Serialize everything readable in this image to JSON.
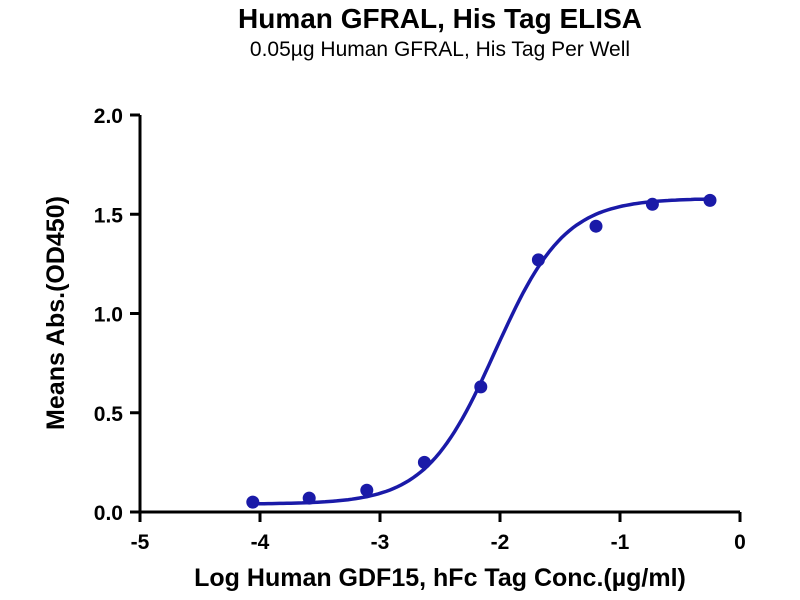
{
  "chart_data": {
    "type": "scatter",
    "title": "Human GFRAL, His Tag ELISA",
    "subtitle": "0.05µg Human GFRAL, His Tag Per Well",
    "xlabel": "Log Human GDF15, hFc Tag Conc.(µg/ml)",
    "ylabel": "Means Abs.(OD450)",
    "xlim": [
      -5,
      0
    ],
    "ylim": [
      0,
      2
    ],
    "grid": false,
    "legend": null,
    "x_ticks": [
      {
        "v": -5,
        "label": "-5"
      },
      {
        "v": -4,
        "label": "-4"
      },
      {
        "v": -3,
        "label": "-3"
      },
      {
        "v": -2,
        "label": "-2"
      },
      {
        "v": -1,
        "label": "-1"
      },
      {
        "v": 0,
        "label": "0"
      }
    ],
    "y_ticks": [
      {
        "v": 0,
        "label": "0.0"
      },
      {
        "v": 0.5,
        "label": "0.5"
      },
      {
        "v": 1,
        "label": "1.0"
      },
      {
        "v": 1.5,
        "label": "1.5"
      },
      {
        "v": 2,
        "label": "2.0"
      }
    ],
    "series": [
      {
        "name": "Human GDF15, hFc Tag",
        "points": [
          {
            "x": -4.06,
            "y": 0.05
          },
          {
            "x": -3.59,
            "y": 0.07
          },
          {
            "x": -3.11,
            "y": 0.11
          },
          {
            "x": -2.63,
            "y": 0.25
          },
          {
            "x": -2.16,
            "y": 0.63
          },
          {
            "x": -1.68,
            "y": 1.27
          },
          {
            "x": -1.2,
            "y": 1.44
          },
          {
            "x": -0.73,
            "y": 1.55
          },
          {
            "x": -0.25,
            "y": 1.57
          }
        ]
      }
    ],
    "fit_curve": {
      "model": "4PL-sigmoid",
      "bottom": 0.04,
      "top": 1.58,
      "log_ec50": -2.04,
      "hill": 1.5,
      "x_start": -4.06,
      "x_end": -0.25
    },
    "colors": {
      "series": "#1a1aa8",
      "axis": "#000000"
    }
  }
}
